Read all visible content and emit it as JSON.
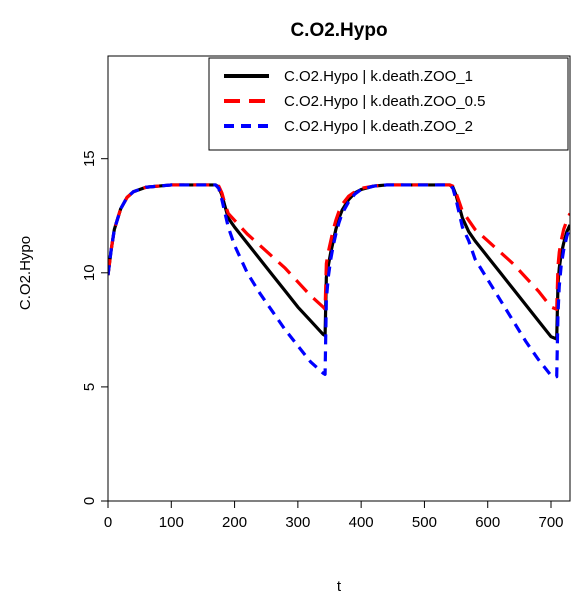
{
  "chart_data": {
    "type": "line",
    "title": "C.O2.Hypo",
    "xlabel": "t",
    "ylabel": "C.O2.Hypo",
    "xlim": [
      0,
      730
    ],
    "ylim": [
      0,
      19.5
    ],
    "xticks": [
      0,
      100,
      200,
      300,
      400,
      500,
      600,
      700
    ],
    "yticks": [
      0,
      5,
      10,
      15
    ],
    "grid": false,
    "legend_position": "top-right",
    "series": [
      {
        "name": "C.O2.Hypo | k.death.ZOO_1",
        "color": "#000000",
        "dash": "solid",
        "x": [
          0,
          5,
          10,
          20,
          30,
          40,
          60,
          80,
          100,
          120,
          140,
          160,
          170,
          175,
          180,
          185,
          190,
          200,
          210,
          220,
          240,
          260,
          280,
          300,
          320,
          340,
          343,
          345,
          348,
          352,
          356,
          360,
          365,
          370,
          380,
          390,
          400,
          420,
          440,
          460,
          480,
          500,
          520,
          540,
          545,
          550,
          555,
          560,
          570,
          580,
          600,
          620,
          640,
          660,
          680,
          700,
          709,
          711,
          713,
          716,
          720,
          725,
          730
        ],
        "y": [
          9.9,
          11.0,
          11.9,
          12.8,
          13.3,
          13.55,
          13.75,
          13.8,
          13.85,
          13.85,
          13.85,
          13.85,
          13.85,
          13.75,
          13.4,
          12.9,
          12.4,
          12.0,
          11.65,
          11.3,
          10.6,
          9.9,
          9.2,
          8.5,
          7.9,
          7.3,
          7.25,
          9.8,
          10.3,
          10.9,
          11.4,
          11.9,
          12.4,
          12.75,
          13.2,
          13.5,
          13.65,
          13.8,
          13.85,
          13.85,
          13.85,
          13.85,
          13.85,
          13.85,
          13.75,
          13.4,
          12.9,
          12.4,
          11.8,
          11.4,
          10.7,
          10.0,
          9.3,
          8.6,
          7.9,
          7.2,
          7.1,
          9.5,
          10.2,
          10.8,
          11.3,
          11.8,
          12.1
        ]
      },
      {
        "name": "C.O2.Hypo | k.death.ZOO_0.5",
        "color": "#ff0000",
        "dash": "long",
        "x": [
          0,
          5,
          10,
          20,
          30,
          40,
          60,
          80,
          100,
          120,
          140,
          160,
          170,
          175,
          180,
          185,
          190,
          200,
          210,
          220,
          240,
          260,
          280,
          300,
          320,
          340,
          343,
          345,
          348,
          352,
          356,
          360,
          365,
          370,
          380,
          390,
          400,
          420,
          440,
          460,
          480,
          500,
          520,
          540,
          545,
          550,
          555,
          560,
          570,
          580,
          600,
          620,
          640,
          660,
          680,
          700,
          709,
          711,
          713,
          716,
          720,
          725,
          730
        ],
        "y": [
          9.9,
          11.0,
          11.9,
          12.8,
          13.3,
          13.55,
          13.75,
          13.8,
          13.85,
          13.85,
          13.85,
          13.85,
          13.85,
          13.8,
          13.5,
          13.0,
          12.6,
          12.3,
          12.0,
          11.7,
          11.2,
          10.7,
          10.2,
          9.6,
          9.0,
          8.5,
          8.4,
          10.4,
          10.9,
          11.4,
          11.9,
          12.3,
          12.7,
          13.0,
          13.35,
          13.55,
          13.7,
          13.8,
          13.85,
          13.85,
          13.85,
          13.85,
          13.85,
          13.85,
          13.8,
          13.5,
          13.1,
          12.7,
          12.3,
          11.9,
          11.4,
          10.9,
          10.4,
          9.8,
          9.2,
          8.5,
          8.4,
          10.3,
          10.9,
          11.4,
          11.9,
          12.3,
          12.6
        ]
      },
      {
        "name": "C.O2.Hypo | k.death.ZOO_2",
        "color": "#0000ff",
        "dash": "short",
        "x": [
          0,
          5,
          10,
          20,
          30,
          40,
          60,
          80,
          100,
          120,
          140,
          160,
          170,
          175,
          180,
          185,
          190,
          200,
          210,
          220,
          240,
          260,
          280,
          300,
          320,
          340,
          343,
          345,
          348,
          352,
          356,
          360,
          365,
          370,
          380,
          390,
          400,
          420,
          440,
          460,
          480,
          500,
          520,
          540,
          545,
          550,
          555,
          560,
          570,
          580,
          600,
          620,
          640,
          660,
          680,
          700,
          709,
          711,
          713,
          716,
          720,
          725,
          730
        ],
        "y": [
          9.9,
          11.0,
          11.9,
          12.8,
          13.3,
          13.55,
          13.75,
          13.8,
          13.85,
          13.85,
          13.85,
          13.85,
          13.85,
          13.7,
          13.2,
          12.6,
          12.0,
          11.2,
          10.6,
          10.0,
          9.1,
          8.3,
          7.5,
          6.8,
          6.1,
          5.6,
          5.55,
          8.8,
          9.8,
          10.6,
          11.2,
          11.7,
          12.2,
          12.6,
          13.1,
          13.45,
          13.65,
          13.8,
          13.85,
          13.85,
          13.85,
          13.85,
          13.85,
          13.85,
          13.7,
          13.2,
          12.6,
          12.0,
          11.4,
          10.6,
          9.7,
          8.8,
          7.9,
          7.0,
          6.2,
          5.5,
          5.45,
          8.2,
          9.4,
          10.3,
          11.0,
          11.6,
          12.0
        ]
      }
    ]
  }
}
